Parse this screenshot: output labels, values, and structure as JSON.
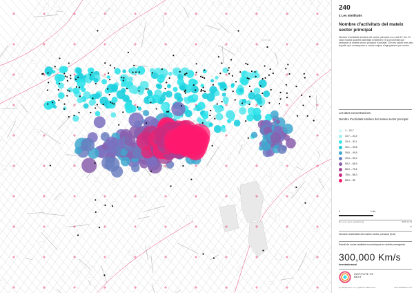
{
  "sheet": {
    "number": "240",
    "section": "4 Les similituds",
    "title": "Nombre d'activitats del mateix sector principal",
    "description": "Nombre d'activitats similars del sector principal a un radi d'1 Km. El valor mostra quantes activitats existeixen en la proximitat que pertanyin al mateix sector principal d'activitat. Són els valors més alts aquells que corresponen a valors majors d'agrupament per sector."
  },
  "legend": {
    "heading": "Les altes concentracions",
    "subtitle": "Nombre d'activitats similars del mateix sector principal",
    "classes": [
      {
        "label": "1 – 10,7",
        "color": "#d8f6f6"
      },
      {
        "label": "10,7 – 20,4",
        "color": "#9defef"
      },
      {
        "label": "20,4 – 30,1",
        "color": "#3fe3e6"
      },
      {
        "label": "30,1 – 39,8",
        "color": "#1dc9d8"
      },
      {
        "label": "39,8 – 49,5",
        "color": "#3fa8cf"
      },
      {
        "label": "49,5 – 59,2",
        "color": "#6a7fbf"
      },
      {
        "label": "59,2 – 68,9",
        "color": "#8a5fae"
      },
      {
        "label": "68,9 – 78,6",
        "color": "#a44496"
      },
      {
        "label": "78,6 – 88,3",
        "color": "#c92c7f"
      },
      {
        "label": "88,3 – 98",
        "color": "#ff1a6e"
      }
    ]
  },
  "scale": {
    "zero": "0",
    "one": "1 km"
  },
  "meta": {
    "file_label": "fitx_nom_spot_sectorial.cgr",
    "date": "2008.12.03",
    "code": "44",
    "indicator": "Nombre d'activitats del mateix sector principal (210)",
    "study": "Estudi de noves realitats econòmiques en àmbits emergents"
  },
  "brand": {
    "name": "300,000 Km/s",
    "sub": "Investadorsand",
    "institute": "INSTITUTE OF NEXT",
    "copyright": "(C) Philips M.E. Inc, (c) BRCO 8 Barcelona",
    "site": "www.300000kms.net"
  },
  "colors": {
    "streets": "#cccccc",
    "boundary": "#e8406f",
    "cyan": "#2fe3ea",
    "magenta": "#ff1a6e",
    "dots": "#111111"
  }
}
